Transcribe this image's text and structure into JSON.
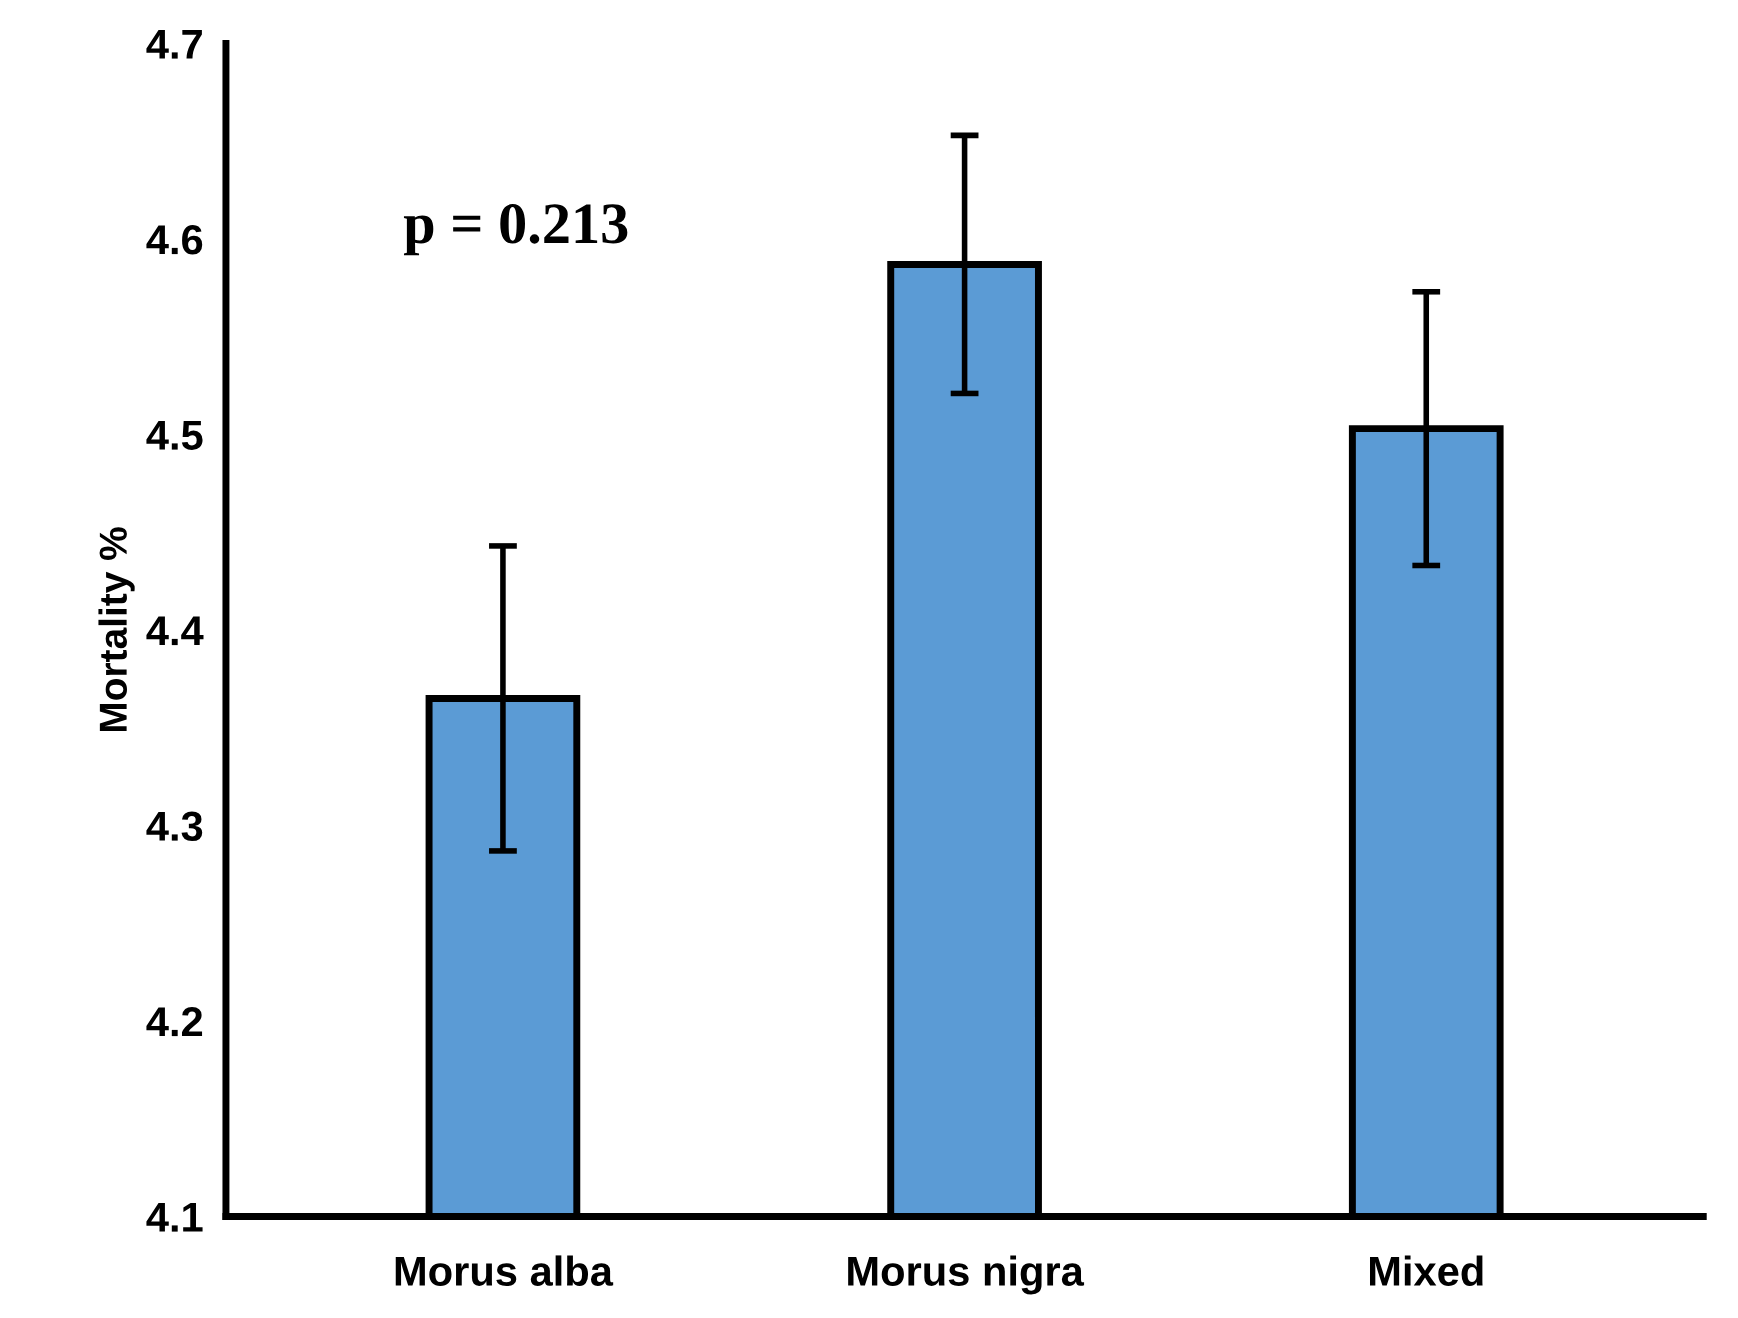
{
  "chart_data": {
    "type": "bar",
    "ylabel": "Mortality %",
    "categories": [
      "Morus alba",
      "Morus nigra",
      "Mixed"
    ],
    "values": [
      4.365,
      4.587,
      4.503
    ],
    "errors": [
      0.078,
      0.066,
      0.07
    ],
    "color": "#5b9bd5",
    "ylim": [
      4.1,
      4.7
    ],
    "yticks": [
      4.1,
      4.2,
      4.3,
      4.4,
      4.5,
      4.6,
      4.7
    ],
    "annotations": [
      "p = 0.213"
    ],
    "grid": false
  }
}
